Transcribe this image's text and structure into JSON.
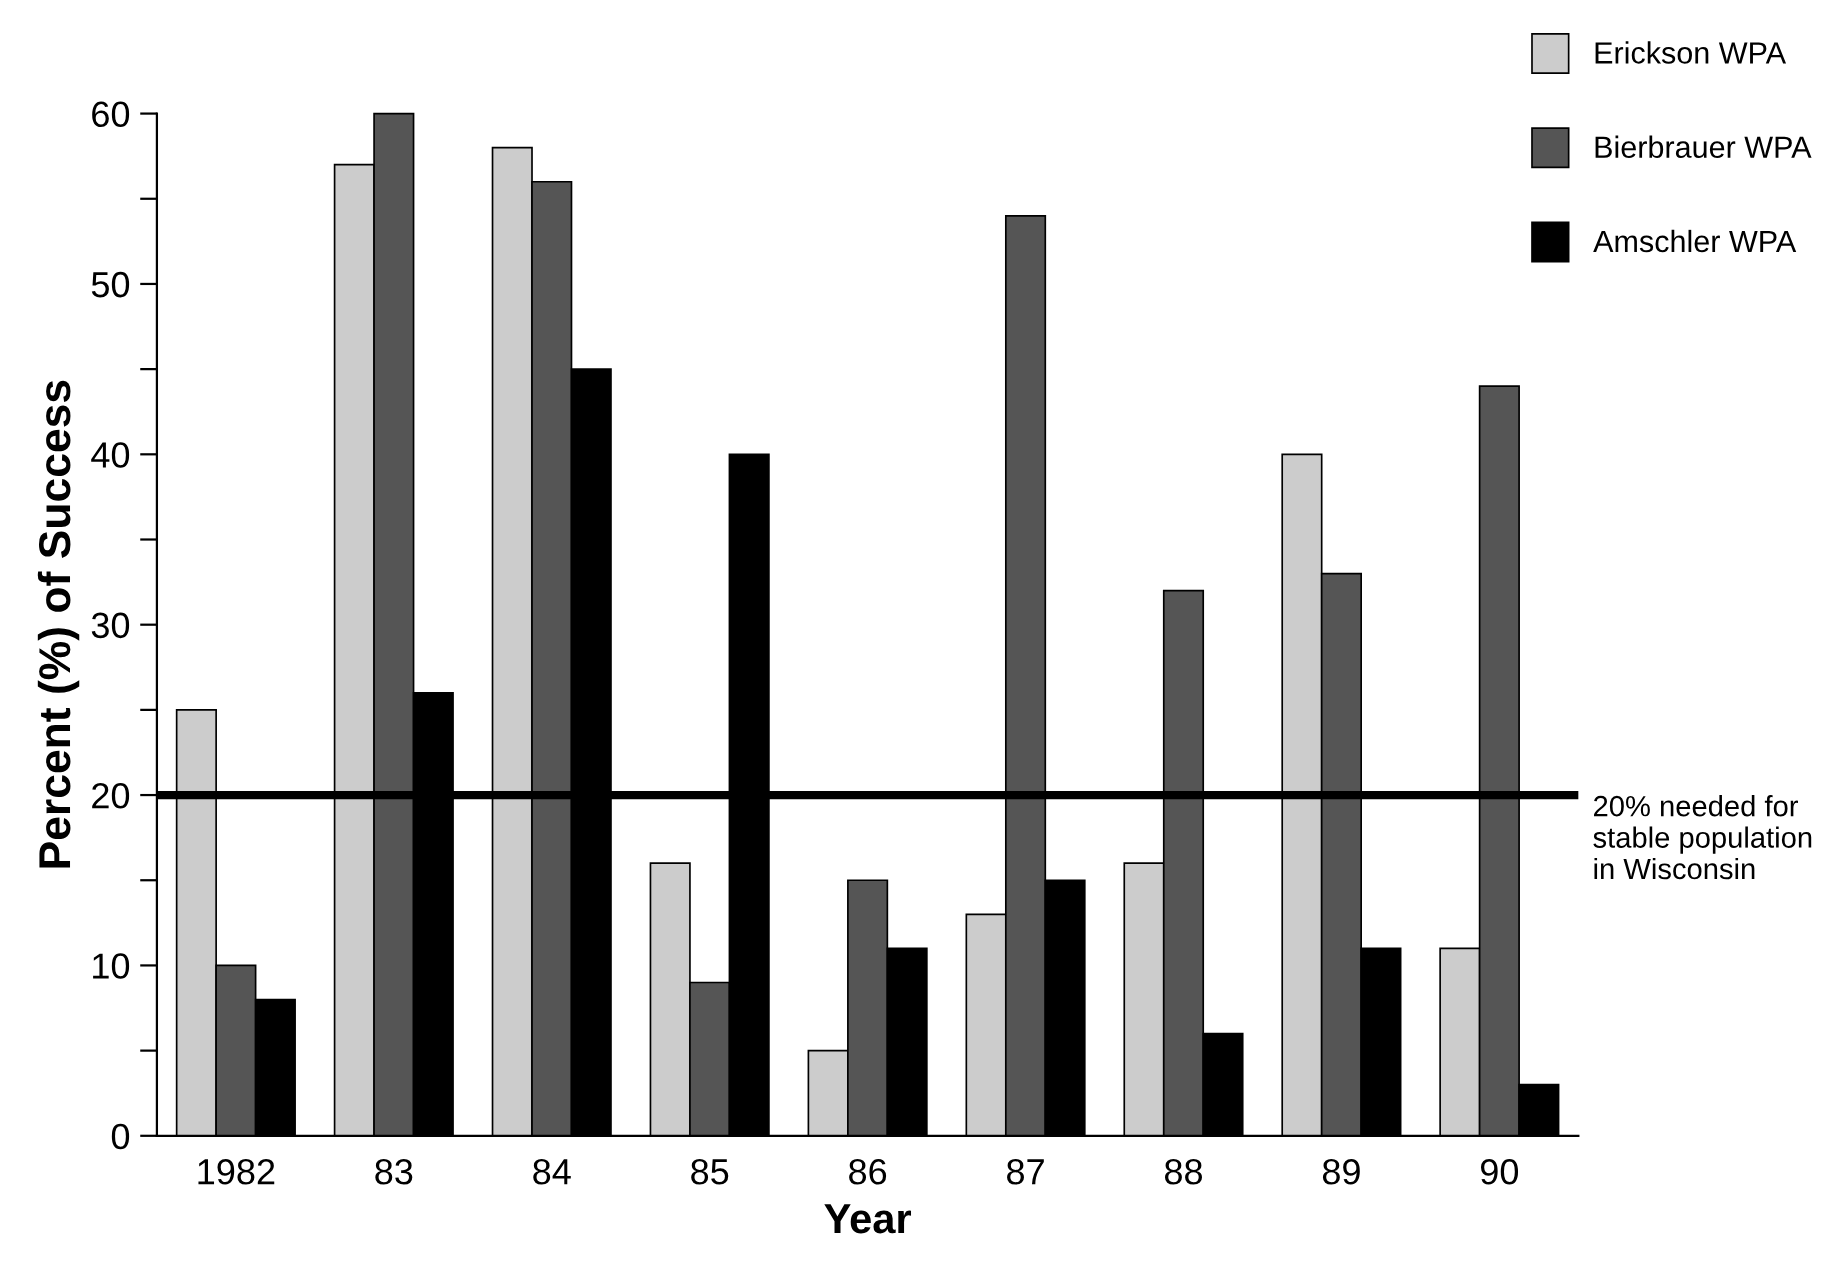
{
  "chart_data": {
    "type": "bar",
    "xlabel": "Year",
    "ylabel": "Percent (%) of Success",
    "categories": [
      "1982",
      "83",
      "84",
      "85",
      "86",
      "87",
      "88",
      "89",
      "90"
    ],
    "series": [
      {
        "name": "Erickson WPA",
        "color": "#cccccc",
        "values": [
          25,
          57,
          58,
          16,
          5,
          13,
          16,
          40,
          11
        ]
      },
      {
        "name": "Bierbrauer WPA",
        "color": "#555555",
        "values": [
          10,
          60,
          56,
          9,
          15,
          54,
          32,
          33,
          44
        ]
      },
      {
        "name": "Amschler WPA",
        "color": "#000000",
        "values": [
          8,
          26,
          45,
          40,
          11,
          15,
          6,
          11,
          3
        ]
      }
    ],
    "ylim": [
      0,
      60
    ],
    "yticks": [
      0,
      {
        "value": 5,
        "label": null
      },
      10,
      {
        "value": 15,
        "label": null
      },
      20,
      {
        "value": 25,
        "label": null
      },
      30,
      {
        "value": 35,
        "label": null
      },
      40,
      {
        "value": 45,
        "label": null
      },
      50,
      {
        "value": 55,
        "label": null
      },
      60
    ],
    "ref_lines": [
      {
        "axis": "y",
        "value": 20,
        "label": "20% needed for\nstable population\nin Wisconsin",
        "color": "#000000",
        "line_style": "solid"
      }
    ],
    "legend": "top right",
    "grid": false
  }
}
